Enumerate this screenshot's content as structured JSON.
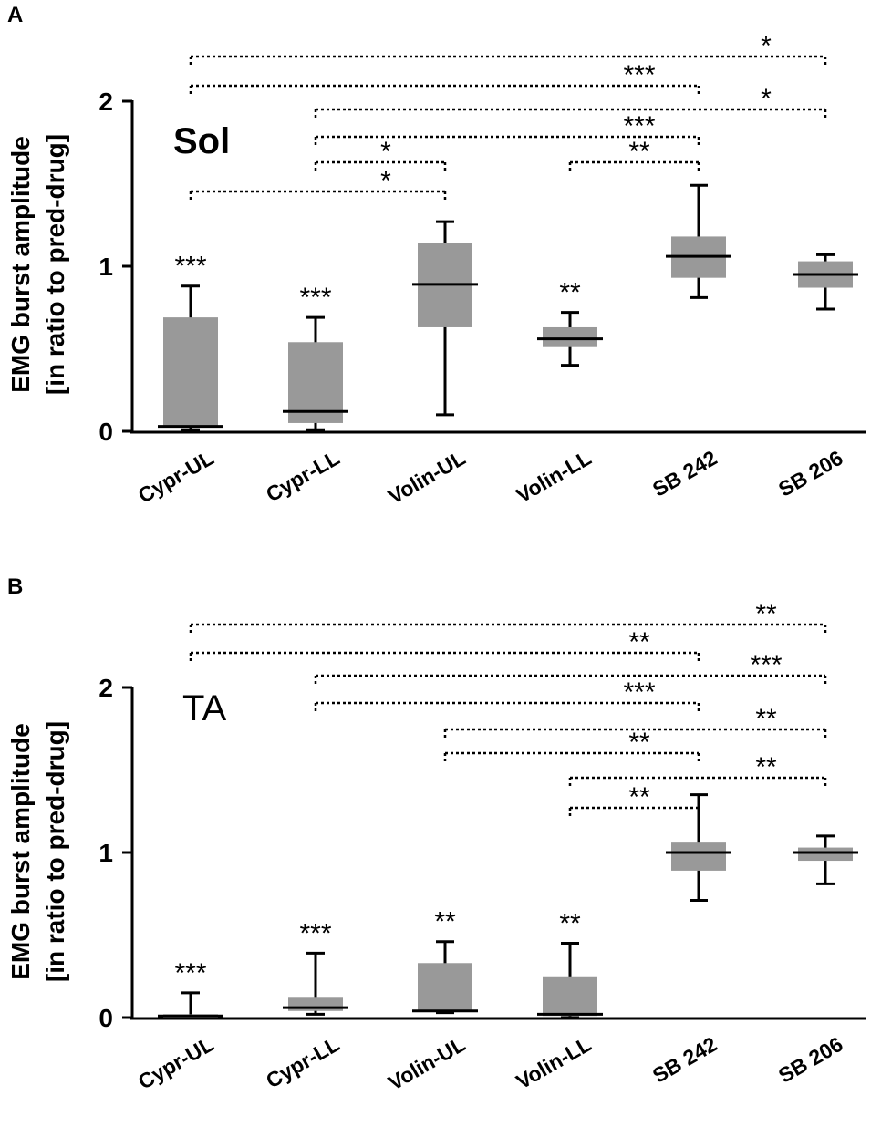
{
  "chart_data": [
    {
      "type": "box",
      "panel_label": "A",
      "muscle_label": "Sol",
      "ylabel_line1": "EMG burst amplitude",
      "ylabel_line2": "[in ratio to pred-drug]",
      "ylim": [
        0,
        2
      ],
      "yticks": [
        "0",
        "1",
        "2"
      ],
      "categories": [
        "Cypr-UL",
        "Cypr-LL",
        "Volin-UL",
        "Volin-LL",
        "SB 242",
        "SB 206"
      ],
      "boxes": [
        {
          "category": "Cypr-UL",
          "low": 0.01,
          "q1": 0.03,
          "median": 0.03,
          "q3": 0.69,
          "high": 0.88,
          "label": "***"
        },
        {
          "category": "Cypr-LL",
          "low": 0.01,
          "q1": 0.05,
          "median": 0.12,
          "q3": 0.54,
          "high": 0.69,
          "label": "***"
        },
        {
          "category": "Volin-UL",
          "low": 0.1,
          "q1": 0.63,
          "median": 0.89,
          "q3": 1.14,
          "high": 1.27,
          "label": ""
        },
        {
          "category": "Volin-LL",
          "low": 0.4,
          "q1": 0.51,
          "median": 0.56,
          "q3": 0.63,
          "high": 0.72,
          "label": "**"
        },
        {
          "category": "SB 242",
          "low": 0.81,
          "q1": 0.93,
          "median": 1.06,
          "q3": 1.18,
          "high": 1.49,
          "label": ""
        },
        {
          "category": "SB 206",
          "low": 0.74,
          "q1": 0.87,
          "median": 0.95,
          "q3": 1.03,
          "high": 1.07,
          "label": ""
        }
      ],
      "comparisons": [
        {
          "from": "Cypr-UL",
          "to": "SB 206",
          "label": "*"
        },
        {
          "from": "Cypr-UL",
          "to": "SB 242",
          "label": "***"
        },
        {
          "from": "Cypr-LL",
          "to": "SB 206",
          "label": "*"
        },
        {
          "from": "Cypr-LL",
          "to": "SB 242",
          "label": "***"
        },
        {
          "from": "Volin-LL",
          "to": "SB 242",
          "label": "**"
        },
        {
          "from": "Cypr-LL",
          "to": "Volin-UL",
          "label": "*"
        },
        {
          "from": "Cypr-UL",
          "to": "Volin-UL",
          "label": "*"
        }
      ]
    },
    {
      "type": "box",
      "panel_label": "B",
      "muscle_label": "TA",
      "ylabel_line1": "EMG burst amplitude",
      "ylabel_line2": "[in ratio to pred-drug]",
      "ylim": [
        0,
        2
      ],
      "yticks": [
        "0",
        "1",
        "2"
      ],
      "categories": [
        "Cypr-UL",
        "Cypr-LL",
        "Volin-UL",
        "Volin-LL",
        "SB 242",
        "SB 206"
      ],
      "boxes": [
        {
          "category": "Cypr-UL",
          "low": 0.0,
          "q1": 0.0,
          "median": 0.01,
          "q3": 0.02,
          "high": 0.15,
          "label": "***"
        },
        {
          "category": "Cypr-LL",
          "low": 0.02,
          "q1": 0.04,
          "median": 0.06,
          "q3": 0.12,
          "high": 0.39,
          "label": "***"
        },
        {
          "category": "Volin-UL",
          "low": 0.03,
          "q1": 0.04,
          "median": 0.04,
          "q3": 0.33,
          "high": 0.46,
          "label": "**"
        },
        {
          "category": "Volin-LL",
          "low": 0.0,
          "q1": 0.01,
          "median": 0.02,
          "q3": 0.25,
          "high": 0.45,
          "label": "**"
        },
        {
          "category": "SB 242",
          "low": 0.71,
          "q1": 0.89,
          "median": 1.0,
          "q3": 1.06,
          "high": 1.35,
          "label": ""
        },
        {
          "category": "SB 206",
          "low": 0.81,
          "q1": 0.95,
          "median": 1.0,
          "q3": 1.03,
          "high": 1.1,
          "label": ""
        }
      ],
      "comparisons": [
        {
          "from": "Cypr-UL",
          "to": "SB 206",
          "label": "**"
        },
        {
          "from": "Cypr-UL",
          "to": "SB 242",
          "label": "**"
        },
        {
          "from": "Cypr-LL",
          "to": "SB 206",
          "label": "***"
        },
        {
          "from": "Cypr-LL",
          "to": "SB 242",
          "label": "***"
        },
        {
          "from": "Volin-UL",
          "to": "SB 206",
          "label": "**"
        },
        {
          "from": "Volin-UL",
          "to": "SB 242",
          "label": "**"
        },
        {
          "from": "Volin-LL",
          "to": "SB 206",
          "label": "**"
        },
        {
          "from": "Volin-LL",
          "to": "SB 242",
          "label": "**"
        }
      ]
    }
  ],
  "style": {
    "box_fill": "#999999",
    "line_color": "#000000"
  }
}
